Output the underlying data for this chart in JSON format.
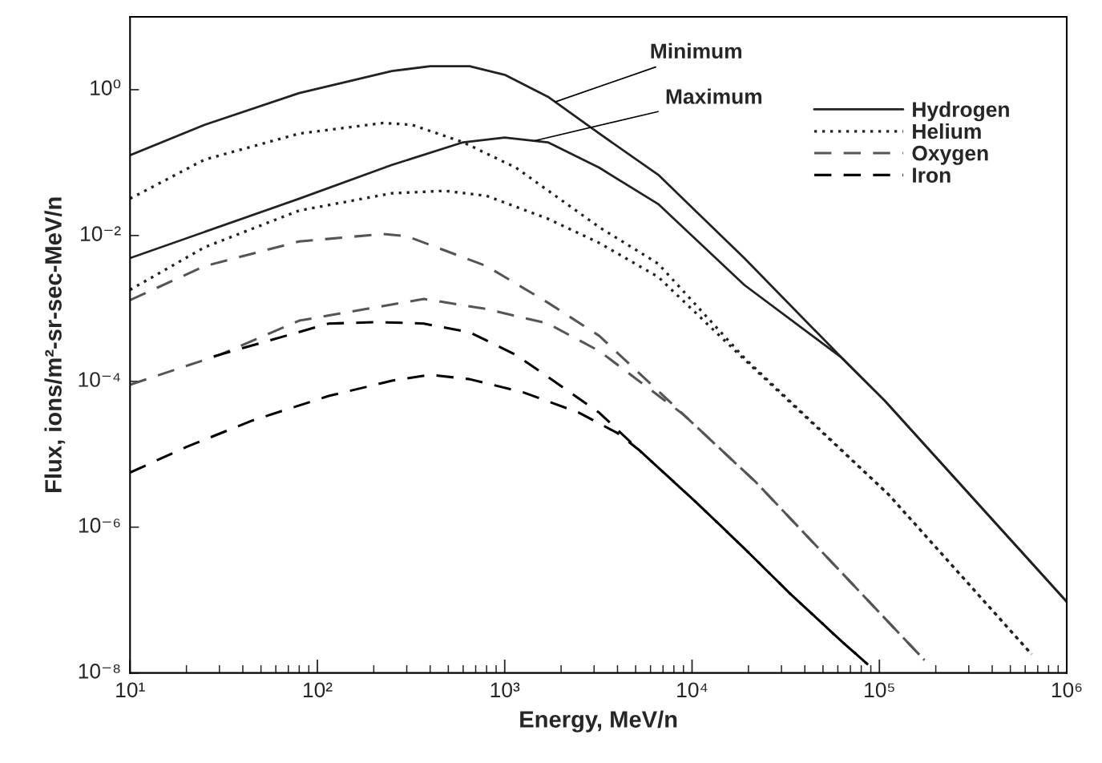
{
  "chart_data": {
    "type": "line",
    "xlabel": "Energy, MeV/n",
    "ylabel": "Flux, ions/m²-sr-sec-MeV/n",
    "log": "xy",
    "legend": "top right",
    "xlim": [
      10,
      1000000
    ],
    "ylim": [
      1e-08,
      10
    ],
    "xticks": [
      {
        "value": 10,
        "label": "10¹"
      },
      {
        "value": 100,
        "label": "10²"
      },
      {
        "value": 1000,
        "label": "10³"
      },
      {
        "value": 10000,
        "label": "10⁴"
      },
      {
        "value": 100000,
        "label": "10⁵"
      },
      {
        "value": 1000000,
        "label": "10⁶"
      }
    ],
    "yticks": [
      {
        "value": 1e-08,
        "label": "10⁻⁸"
      },
      {
        "value": 1e-06,
        "label": "10⁻⁶"
      },
      {
        "value": 0.0001,
        "label": "10⁻⁴"
      },
      {
        "value": 0.01,
        "label": "10⁻²"
      },
      {
        "value": 1,
        "label": "10⁰"
      }
    ],
    "annotations": [
      {
        "text": "Minimum",
        "x": 1860,
        "y": 0.68
      },
      {
        "text": "Maximum",
        "x": 1450,
        "y": 0.2
      }
    ],
    "series": [
      {
        "name": "Hydrogen",
        "color": "#222222",
        "line_style": "solid",
        "x": [
          10,
          25,
          80,
          250,
          400,
          650,
          1000,
          1700,
          3200,
          6600,
          19000,
          63000,
          107000,
          1000000
        ],
        "values": [
          0.126,
          0.33,
          0.9,
          1.8,
          2.1,
          2.1,
          1.6,
          0.8,
          0.25,
          0.068,
          0.0049,
          0.00021,
          5.4e-05,
          9.5e-08
        ]
      },
      {
        "color": "#222222",
        "line_style": "solid",
        "x": [
          10,
          80,
          250,
          600,
          1000,
          1700,
          3200,
          6600,
          19000,
          63000,
          107000,
          1000000
        ],
        "values": [
          0.0049,
          0.032,
          0.093,
          0.19,
          0.22,
          0.19,
          0.085,
          0.027,
          0.0021,
          0.00021,
          5.4e-05,
          9.5e-08
        ]
      },
      {
        "name": "Helium",
        "color": "#222222",
        "line_style": "dotted",
        "x": [
          10,
          25,
          80,
          225,
          320,
          600,
          1150,
          3200,
          6600,
          19000,
          112000,
          650000
        ],
        "values": [
          0.032,
          0.11,
          0.25,
          0.35,
          0.33,
          0.19,
          0.085,
          0.013,
          0.0041,
          0.00021,
          2.8e-06,
          1.8e-08
        ]
      },
      {
        "color": "#222222",
        "line_style": "dotted",
        "x": [
          10,
          25,
          80,
          250,
          480,
          800,
          1700,
          3200,
          6600,
          19000,
          112000,
          650000
        ],
        "values": [
          0.0018,
          0.0069,
          0.022,
          0.038,
          0.041,
          0.035,
          0.017,
          0.0079,
          0.0027,
          0.0002,
          2.8e-06,
          1.8e-08
        ]
      },
      {
        "name": "Oxygen",
        "color": "#555555",
        "line_style": "dashed",
        "x": [
          10,
          25,
          80,
          225,
          300,
          800,
          1700,
          3200,
          9000,
          22000,
          174000
        ],
        "values": [
          0.0013,
          0.0038,
          0.0083,
          0.0105,
          0.0098,
          0.0038,
          0.0012,
          0.00042,
          3.5e-05,
          4.1e-06,
          1.5e-08
        ]
      },
      {
        "color": "#555555",
        "line_style": "dashed",
        "x": [
          10,
          30,
          80,
          370,
          800,
          1700,
          3200,
          9000,
          22000,
          174000
        ],
        "values": [
          9e-05,
          0.00023,
          0.00068,
          0.00135,
          0.00098,
          0.00062,
          0.00026,
          3.5e-05,
          4.1e-06,
          1.5e-08
        ]
      },
      {
        "name": "Iron",
        "color": "#000000",
        "line_style": "dashed",
        "x": [
          28,
          115,
          210,
          370,
          650,
          1150,
          2100,
          3200,
          5200,
          10500,
          18600,
          33000,
          63000,
          87000
        ],
        "values": [
          0.00022,
          0.00062,
          0.00065,
          0.00062,
          0.00047,
          0.00023,
          7.9e-05,
          3.7e-05,
          1.15e-05,
          2.2e-06,
          5.4e-07,
          1.26e-07,
          2.7e-08,
          1.3e-08
        ]
      },
      {
        "color": "#000000",
        "line_style": "dashed",
        "x": [
          10,
          20,
          45,
          115,
          250,
          400,
          650,
          1250,
          2500,
          4000,
          5200,
          10500,
          18600,
          33000,
          63000,
          87000
        ],
        "values": [
          5.6e-06,
          1.26e-05,
          2.9e-05,
          6.3e-05,
          0.000102,
          0.000123,
          0.000107,
          7.1e-05,
          3.7e-05,
          1.95e-05,
          1.15e-05,
          2.2e-06,
          5.4e-07,
          1.26e-07,
          2.7e-08,
          1.3e-08
        ]
      }
    ]
  }
}
